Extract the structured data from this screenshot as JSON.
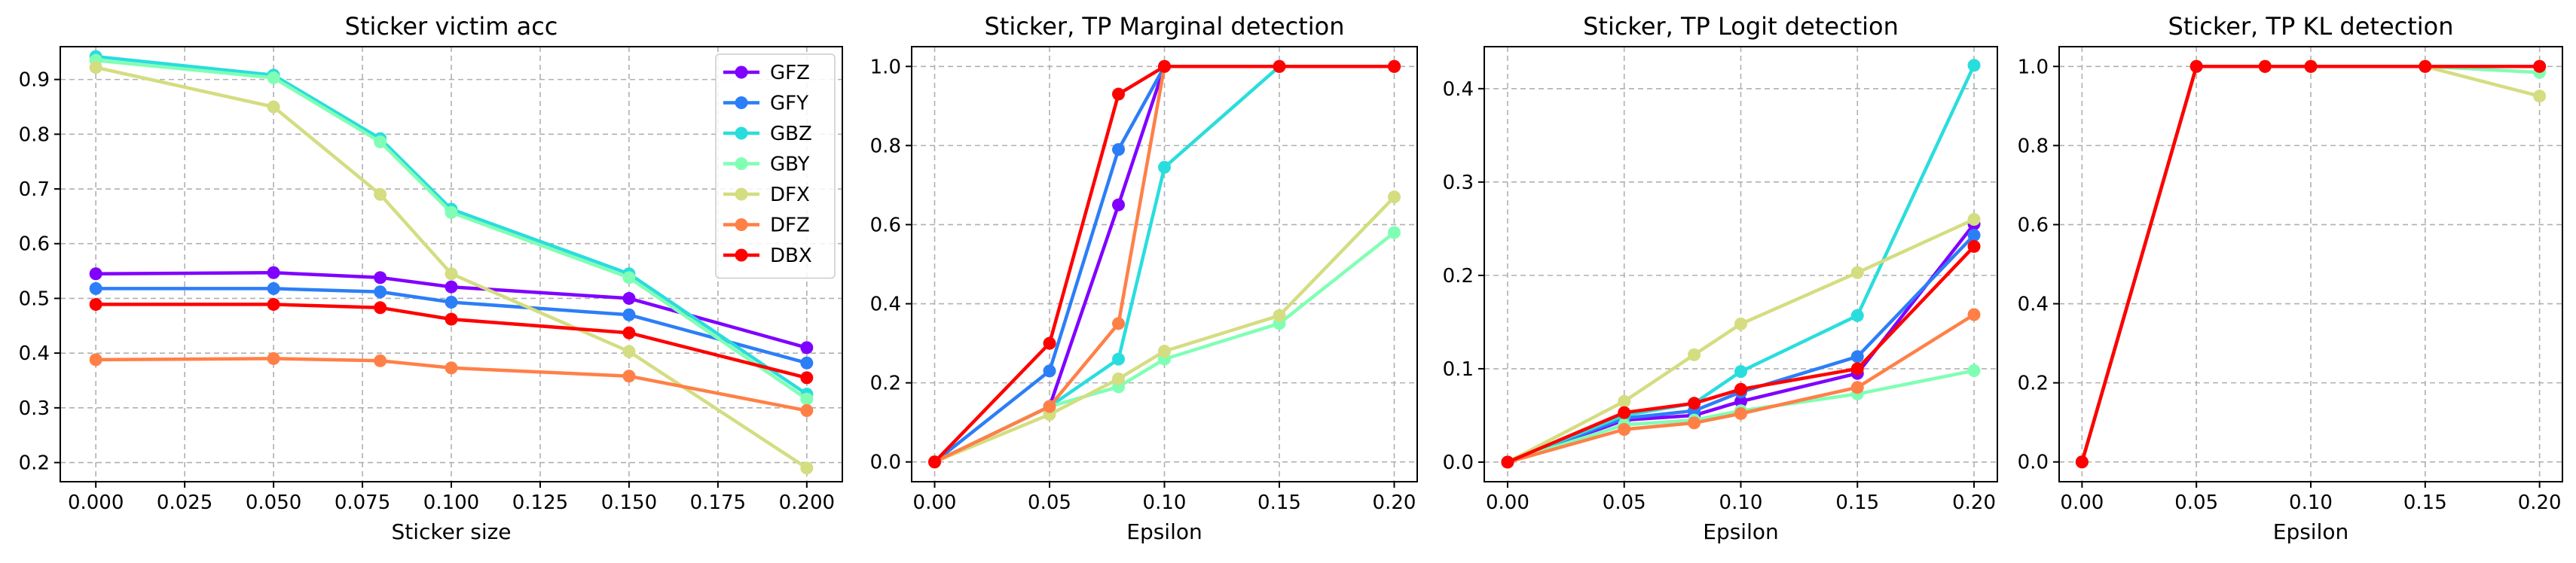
{
  "colors": {
    "GFZ": "#8000ff",
    "GFY": "#2c7ef7",
    "GBZ": "#2adddd",
    "GBY": "#80ffb4",
    "DFX": "#d4dd80",
    "DFZ": "#ff8047",
    "DBX": "#ff0000"
  },
  "chart_data": [
    {
      "type": "line",
      "title": "Sticker victim acc",
      "xlabel": "Sticker size",
      "ylabel": "",
      "xlim": [
        -0.01,
        0.21
      ],
      "ylim": [
        0.165,
        0.96
      ],
      "xticks": [
        "0.000",
        "0.025",
        "0.050",
        "0.075",
        "0.100",
        "0.125",
        "0.150",
        "0.175",
        "0.200"
      ],
      "yticks": [
        "0.2",
        "0.3",
        "0.4",
        "0.5",
        "0.6",
        "0.7",
        "0.8",
        "0.9"
      ],
      "legend": "top-right",
      "grid": true,
      "x": [
        0,
        0.05,
        0.08,
        0.1,
        0.15,
        0.2
      ],
      "series": [
        {
          "name": "GFZ",
          "values": [
            0.545,
            0.547,
            0.538,
            0.521,
            0.5,
            0.41
          ]
        },
        {
          "name": "GFY",
          "values": [
            0.518,
            0.518,
            0.512,
            0.493,
            0.47,
            0.382
          ]
        },
        {
          "name": "GBZ",
          "values": [
            0.942,
            0.908,
            0.792,
            0.663,
            0.545,
            0.325
          ]
        },
        {
          "name": "GBY",
          "values": [
            0.935,
            0.903,
            0.786,
            0.657,
            0.538,
            0.316
          ]
        },
        {
          "name": "DFX",
          "values": [
            0.922,
            0.85,
            0.69,
            0.545,
            0.403,
            0.19
          ]
        },
        {
          "name": "DFZ",
          "values": [
            0.388,
            0.39,
            0.386,
            0.373,
            0.358,
            0.295
          ]
        },
        {
          "name": "DBX",
          "values": [
            0.489,
            0.489,
            0.483,
            0.462,
            0.437,
            0.355
          ]
        }
      ]
    },
    {
      "type": "line",
      "title": "Sticker, TP Marginal detection",
      "xlabel": "Epsilon",
      "ylabel": "",
      "xlim": [
        -0.01,
        0.21
      ],
      "ylim": [
        -0.05,
        1.05
      ],
      "xticks": [
        "0.00",
        "0.05",
        "0.10",
        "0.15",
        "0.20"
      ],
      "yticks": [
        "0.0",
        "0.2",
        "0.4",
        "0.6",
        "0.8",
        "1.0"
      ],
      "grid": true,
      "x": [
        0,
        0.05,
        0.08,
        0.1,
        0.15,
        0.2
      ],
      "series": [
        {
          "name": "GFZ",
          "values": [
            0,
            0.14,
            0.65,
            1.0,
            1.0,
            1.0
          ]
        },
        {
          "name": "GFY",
          "values": [
            0,
            0.23,
            0.79,
            1.0,
            1.0,
            1.0
          ]
        },
        {
          "name": "GBZ",
          "values": [
            0,
            0.14,
            0.26,
            0.745,
            1.0,
            1.0
          ]
        },
        {
          "name": "GBY",
          "values": [
            0,
            0.14,
            0.19,
            0.26,
            0.35,
            0.58
          ]
        },
        {
          "name": "DFX",
          "values": [
            0,
            0.12,
            0.21,
            0.28,
            0.37,
            0.67
          ]
        },
        {
          "name": "DFZ",
          "values": [
            0,
            0.14,
            0.35,
            1.0,
            1.0,
            1.0
          ]
        },
        {
          "name": "DBX",
          "values": [
            0,
            0.3,
            0.93,
            1.0,
            1.0,
            1.0
          ]
        }
      ]
    },
    {
      "type": "line",
      "title": "Sticker, TP Logit detection",
      "xlabel": "Epsilon",
      "ylabel": "",
      "xlim": [
        -0.01,
        0.21
      ],
      "ylim": [
        -0.021,
        0.445
      ],
      "xticks": [
        "0.00",
        "0.05",
        "0.10",
        "0.15",
        "0.20"
      ],
      "yticks": [
        "0.0",
        "0.1",
        "0.2",
        "0.3",
        "0.4"
      ],
      "grid": true,
      "x": [
        0,
        0.05,
        0.08,
        0.1,
        0.15,
        0.2
      ],
      "series": [
        {
          "name": "GFZ",
          "values": [
            0,
            0.045,
            0.05,
            0.065,
            0.095,
            0.255
          ]
        },
        {
          "name": "GFY",
          "values": [
            0,
            0.047,
            0.055,
            0.075,
            0.113,
            0.243
          ]
        },
        {
          "name": "GBZ",
          "values": [
            0,
            0.05,
            0.063,
            0.097,
            0.157,
            0.425
          ]
        },
        {
          "name": "GBY",
          "values": [
            0,
            0.04,
            0.045,
            0.055,
            0.073,
            0.098
          ]
        },
        {
          "name": "DFX",
          "values": [
            0,
            0.065,
            0.115,
            0.148,
            0.203,
            0.26
          ]
        },
        {
          "name": "DFZ",
          "values": [
            0,
            0.035,
            0.042,
            0.052,
            0.08,
            0.158
          ]
        },
        {
          "name": "DBX",
          "values": [
            0,
            0.053,
            0.063,
            0.078,
            0.1,
            0.231
          ]
        }
      ]
    },
    {
      "type": "line",
      "title": "Sticker, TP KL detection",
      "xlabel": "Epsilon",
      "ylabel": "",
      "xlim": [
        -0.01,
        0.21
      ],
      "ylim": [
        -0.05,
        1.05
      ],
      "xticks": [
        "0.00",
        "0.05",
        "0.10",
        "0.15",
        "0.20"
      ],
      "yticks": [
        "0.0",
        "0.2",
        "0.4",
        "0.6",
        "0.8",
        "1.0"
      ],
      "grid": true,
      "x": [
        0,
        0.05,
        0.08,
        0.1,
        0.15,
        0.2
      ],
      "series": [
        {
          "name": "GFZ",
          "values": [
            0,
            1.0,
            1.0,
            1.0,
            1.0,
            1.0
          ]
        },
        {
          "name": "GFY",
          "values": [
            0,
            1.0,
            1.0,
            1.0,
            1.0,
            1.0
          ]
        },
        {
          "name": "GBZ",
          "values": [
            0,
            1.0,
            1.0,
            1.0,
            1.0,
            1.0
          ]
        },
        {
          "name": "GBY",
          "values": [
            0,
            1.0,
            1.0,
            1.0,
            1.0,
            0.985
          ]
        },
        {
          "name": "DFX",
          "values": [
            0,
            1.0,
            1.0,
            1.0,
            1.0,
            0.925
          ]
        },
        {
          "name": "DFZ",
          "values": [
            0,
            1.0,
            1.0,
            1.0,
            1.0,
            1.0
          ]
        },
        {
          "name": "DBX",
          "values": [
            0,
            1.0,
            1.0,
            1.0,
            1.0,
            1.0
          ]
        }
      ]
    }
  ]
}
